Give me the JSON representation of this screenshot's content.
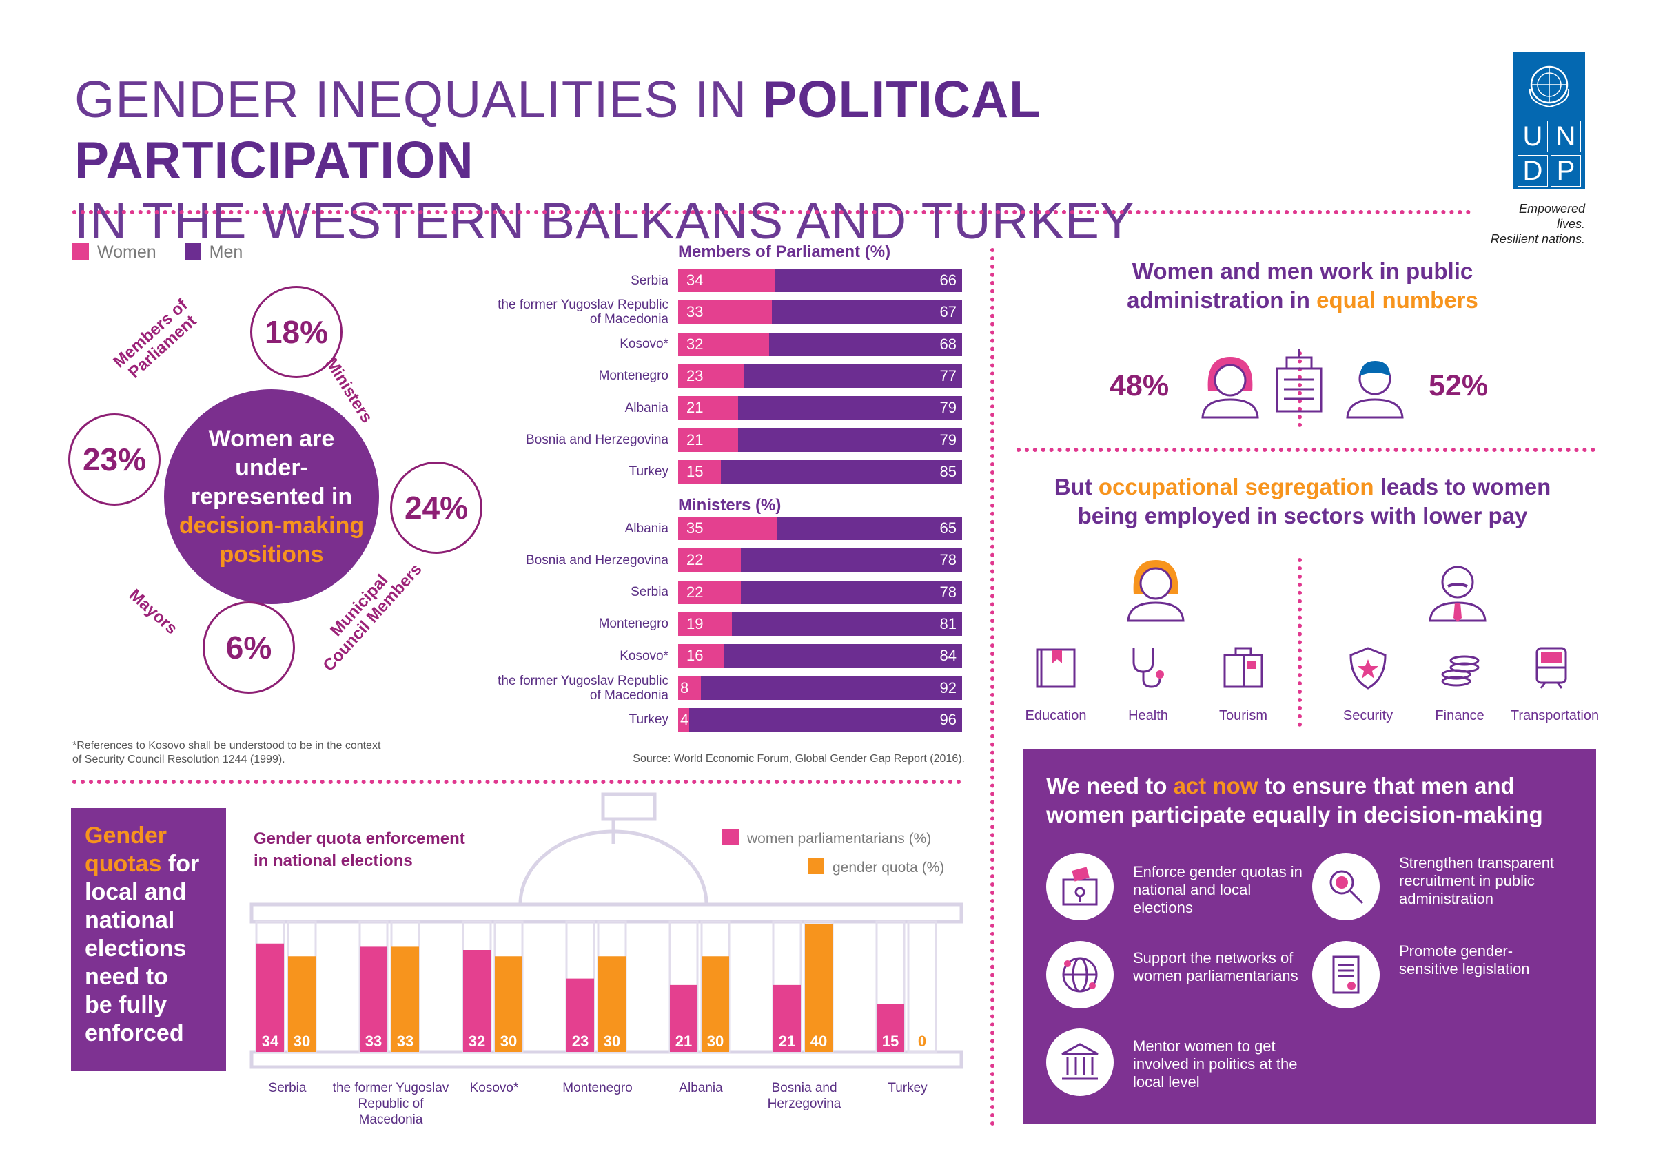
{
  "header": {
    "title_line1_normal": "GENDER INEQUALITIES IN ",
    "title_line1_bold": "POLITICAL PARTICIPATION",
    "title_line2": "IN THE WESTERN BALKANS AND TURKEY",
    "logo_letters": [
      "U",
      "N",
      "D",
      "P"
    ],
    "tagline1": "Empowered lives.",
    "tagline2": "Resilient nations."
  },
  "colors": {
    "women": "#e4408f",
    "men": "#6c2d91",
    "quota": "#f7941d",
    "accent": "#f7941d",
    "dots": "#e0388f"
  },
  "legend": {
    "women": "Women",
    "men": "Men"
  },
  "overview": {
    "center_line1": "Women are",
    "center_line2": "under-",
    "center_line3": "represented in",
    "center_highlight1": "decision-making",
    "center_highlight2": "positions",
    "ministers_pct": "18%",
    "ministers_label": "Ministers",
    "mp_pct": "23%",
    "mp_label_1": "Members of",
    "mp_label_2": "Parliament",
    "council_pct": "24%",
    "council_label_1": "Municipal",
    "council_label_2": "Council Members",
    "mayors_pct": "6%",
    "mayors_label": "Mayors"
  },
  "footnote": "*References to Kosovo shall be understood to be in the context of Security Council Resolution 1244 (1999).",
  "source": "Source: World Economic Forum, Global Gender Gap Report (2016).",
  "chart_data": [
    {
      "type": "bar",
      "title": "Members of Parliament (%)",
      "categories": [
        "Serbia",
        "the former Yugoslav Republic of Macedonia",
        "Kosovo*",
        "Montenegro",
        "Albania",
        "Bosnia and Herzegovina",
        "Turkey"
      ],
      "series": [
        {
          "name": "Women",
          "values": [
            34,
            33,
            32,
            23,
            21,
            21,
            15
          ]
        },
        {
          "name": "Men",
          "values": [
            66,
            67,
            68,
            77,
            79,
            79,
            85
          ]
        }
      ]
    },
    {
      "type": "bar",
      "title": "Ministers (%)",
      "categories": [
        "Albania",
        "Bosnia and Herzegovina",
        "Serbia",
        "Montenegro",
        "Kosovo*",
        "the former Yugoslav Republic of Macedonia",
        "Turkey"
      ],
      "series": [
        {
          "name": "Women",
          "values": [
            35,
            22,
            22,
            19,
            16,
            8,
            4
          ]
        },
        {
          "name": "Men",
          "values": [
            65,
            78,
            78,
            81,
            84,
            92,
            96
          ]
        }
      ]
    },
    {
      "type": "bar",
      "title": "Gender quota enforcement in national elections",
      "categories": [
        "Serbia",
        "the former Yugoslav Republic of Macedonia",
        "Kosovo*",
        "Montenegro",
        "Albania",
        "Bosnia and Herzegovina",
        "Turkey"
      ],
      "series": [
        {
          "name": "women parliamentarians (%)",
          "values": [
            34,
            33,
            32,
            23,
            21,
            21,
            15
          ]
        },
        {
          "name": "gender quota (%)",
          "values": [
            30,
            33,
            30,
            30,
            30,
            40,
            0
          ]
        }
      ],
      "ylim": [
        0,
        40
      ]
    }
  ],
  "quota_box": {
    "highlight1": "Gender",
    "highlight2": "quotas",
    "rest1": " for",
    "rest2": "local and",
    "rest3": "national",
    "rest4": "elections",
    "rest5": "need to",
    "rest6": "be fully",
    "rest7": "enforced"
  },
  "quota_chart": {
    "title_1": "Gender quota enforcement",
    "title_2": "in national elections",
    "legend_women": "women parliamentarians (%)",
    "legend_quota": "gender quota (%)",
    "labels": [
      [
        "Serbia"
      ],
      [
        "the former Yugoslav",
        "Republic of",
        "Macedonia"
      ],
      [
        "Kosovo*"
      ],
      [
        "Montenegro"
      ],
      [
        "Albania"
      ],
      [
        "Bosnia and",
        "Herzegovina"
      ],
      [
        "Turkey"
      ]
    ]
  },
  "public_admin": {
    "title_1": "Women and men work in public",
    "title_2": "administration in ",
    "title_highlight": "equal numbers",
    "women_pct": "48%",
    "men_pct": "52%"
  },
  "segregation": {
    "title_pre": "But ",
    "title_highlight": "occupational segregation",
    "title_post": " leads to women",
    "title_2": "being employed in sectors with lower pay",
    "women_sectors": [
      "Education",
      "Health",
      "Tourism"
    ],
    "men_sectors": [
      "Security",
      "Finance",
      "Transportation"
    ]
  },
  "act": {
    "title_pre": "We need to ",
    "title_highlight": "act now",
    "title_post": " to ensure that men and",
    "title_2": "women participate equally in decision-making",
    "items": [
      "Enforce gender quotas in national and local elections",
      "Strengthen transparent recruitment in public administration",
      "Support the networks of women parliamentarians",
      "Promote gender-sensitive legislation",
      "Mentor women to get involved in politics at the local level"
    ]
  }
}
